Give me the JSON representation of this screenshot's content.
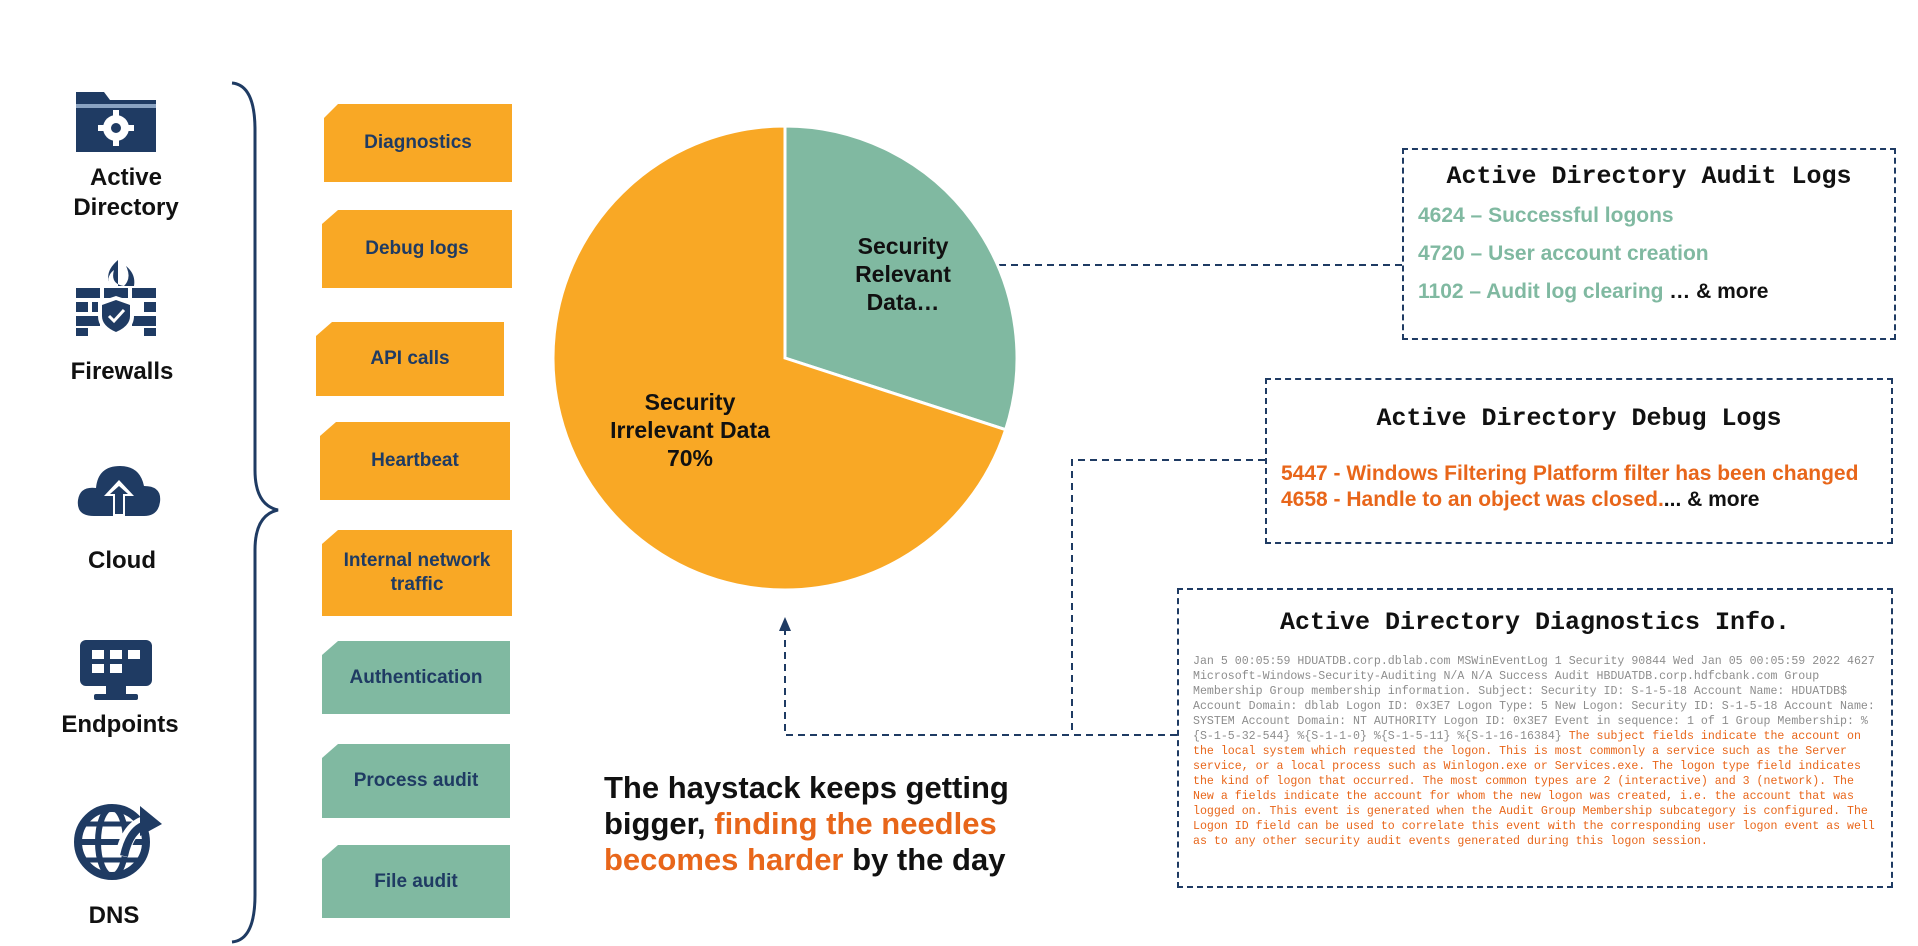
{
  "sources": [
    {
      "label": "Active Directory",
      "icon": "folder-gear-icon"
    },
    {
      "label": "Firewalls",
      "icon": "firewall-icon"
    },
    {
      "label": "Cloud",
      "icon": "cloud-upload-icon"
    },
    {
      "label": "Endpoints",
      "icon": "monitor-icon"
    },
    {
      "label": "DNS",
      "icon": "globe-arrow-icon"
    }
  ],
  "log_types": [
    {
      "label": "Diagnostics",
      "color": "#f9a825"
    },
    {
      "label": "Debug logs",
      "color": "#f9a825"
    },
    {
      "label": "API calls",
      "color": "#f9a825"
    },
    {
      "label": "Heartbeat",
      "color": "#f9a825"
    },
    {
      "label": "Internal network traffic",
      "color": "#f9a825"
    },
    {
      "label": "Authentication",
      "color": "#80b9a1"
    },
    {
      "label": "Process audit",
      "color": "#80b9a1"
    },
    {
      "label": "File audit",
      "color": "#80b9a1"
    }
  ],
  "chart_data": {
    "type": "pie",
    "slices": [
      {
        "label_lines": [
          "Security",
          "Relevant",
          "Data…"
        ],
        "value": 30,
        "color": "#80b9a1"
      },
      {
        "label_lines": [
          "Security",
          "Irrelevant Data",
          "70%"
        ],
        "value": 70,
        "color": "#f9a825"
      }
    ]
  },
  "audit_logs": {
    "title": "Active Directory Audit Logs",
    "lines": [
      {
        "text": "4624 – Successful logons",
        "suffix": ""
      },
      {
        "text": "4720 – User account creation",
        "suffix": ""
      },
      {
        "text": "1102 – Audit log clearing",
        "suffix": " … & more"
      }
    ]
  },
  "debug_logs": {
    "title": "Active Directory Debug Logs",
    "lines": [
      {
        "text": "5447 - Windows Filtering Platform filter has been changed",
        "suffix": ""
      },
      {
        "text": "4658 - Handle to an object was closed.",
        "suffix": "... & more"
      }
    ]
  },
  "diagnostics": {
    "title": "Active Directory Diagnostics Info.",
    "gray_text": "Jan 5 00:05:59 HDUATDB.corp.dblab.com MSWinEventLog 1 Security 90844 Wed Jan 05 00:05:59 2022 4627 Microsoft-Windows-Security-Auditing N/A N/A Success Audit HBDUATDB.corp.hdfcbank.com Group Membership Group membership information. Subject: Security ID: S-1-5-18 Account Name: HDUATDB$ Account Domain: dblab Logon ID: 0x3E7 Logon Type: 5 New Logon: Security ID: S-1-5-18 Account Name: SYSTEM Account Domain: NT AUTHORITY Logon ID: 0x3E7 Event in sequence: 1 of 1 Group Membership: %{S-1-5-32-544} %{S-1-1-0} %{S-1-5-11} %{S-1-16-16384}",
    "orange_text": " The subject fields indicate the account on the local system which requested the logon. This is most commonly a service such as the Server service, or a local process such as Winlogon.exe or Services.exe. The logon type field indicates the kind of logon that occurred. The most common types are 2 (interactive) and 3 (network). The New a fields indicate the account for whom the new logon was created, i.e. the account that was logged on. This event is generated when the Audit Group Membership subcategory is configured. The Logon ID field can be used to correlate this event with the corresponding user logon event as well as to any other security audit events generated during this logon session."
  },
  "haystack": {
    "part1": "The haystack keeps getting bigger, ",
    "highlight": "finding the needles becomes harder",
    "part2": " by the day"
  },
  "colors": {
    "navy": "#1f3b63",
    "orange": "#f9a825",
    "green": "#80b9a1",
    "accent_orange": "#e8661a"
  }
}
